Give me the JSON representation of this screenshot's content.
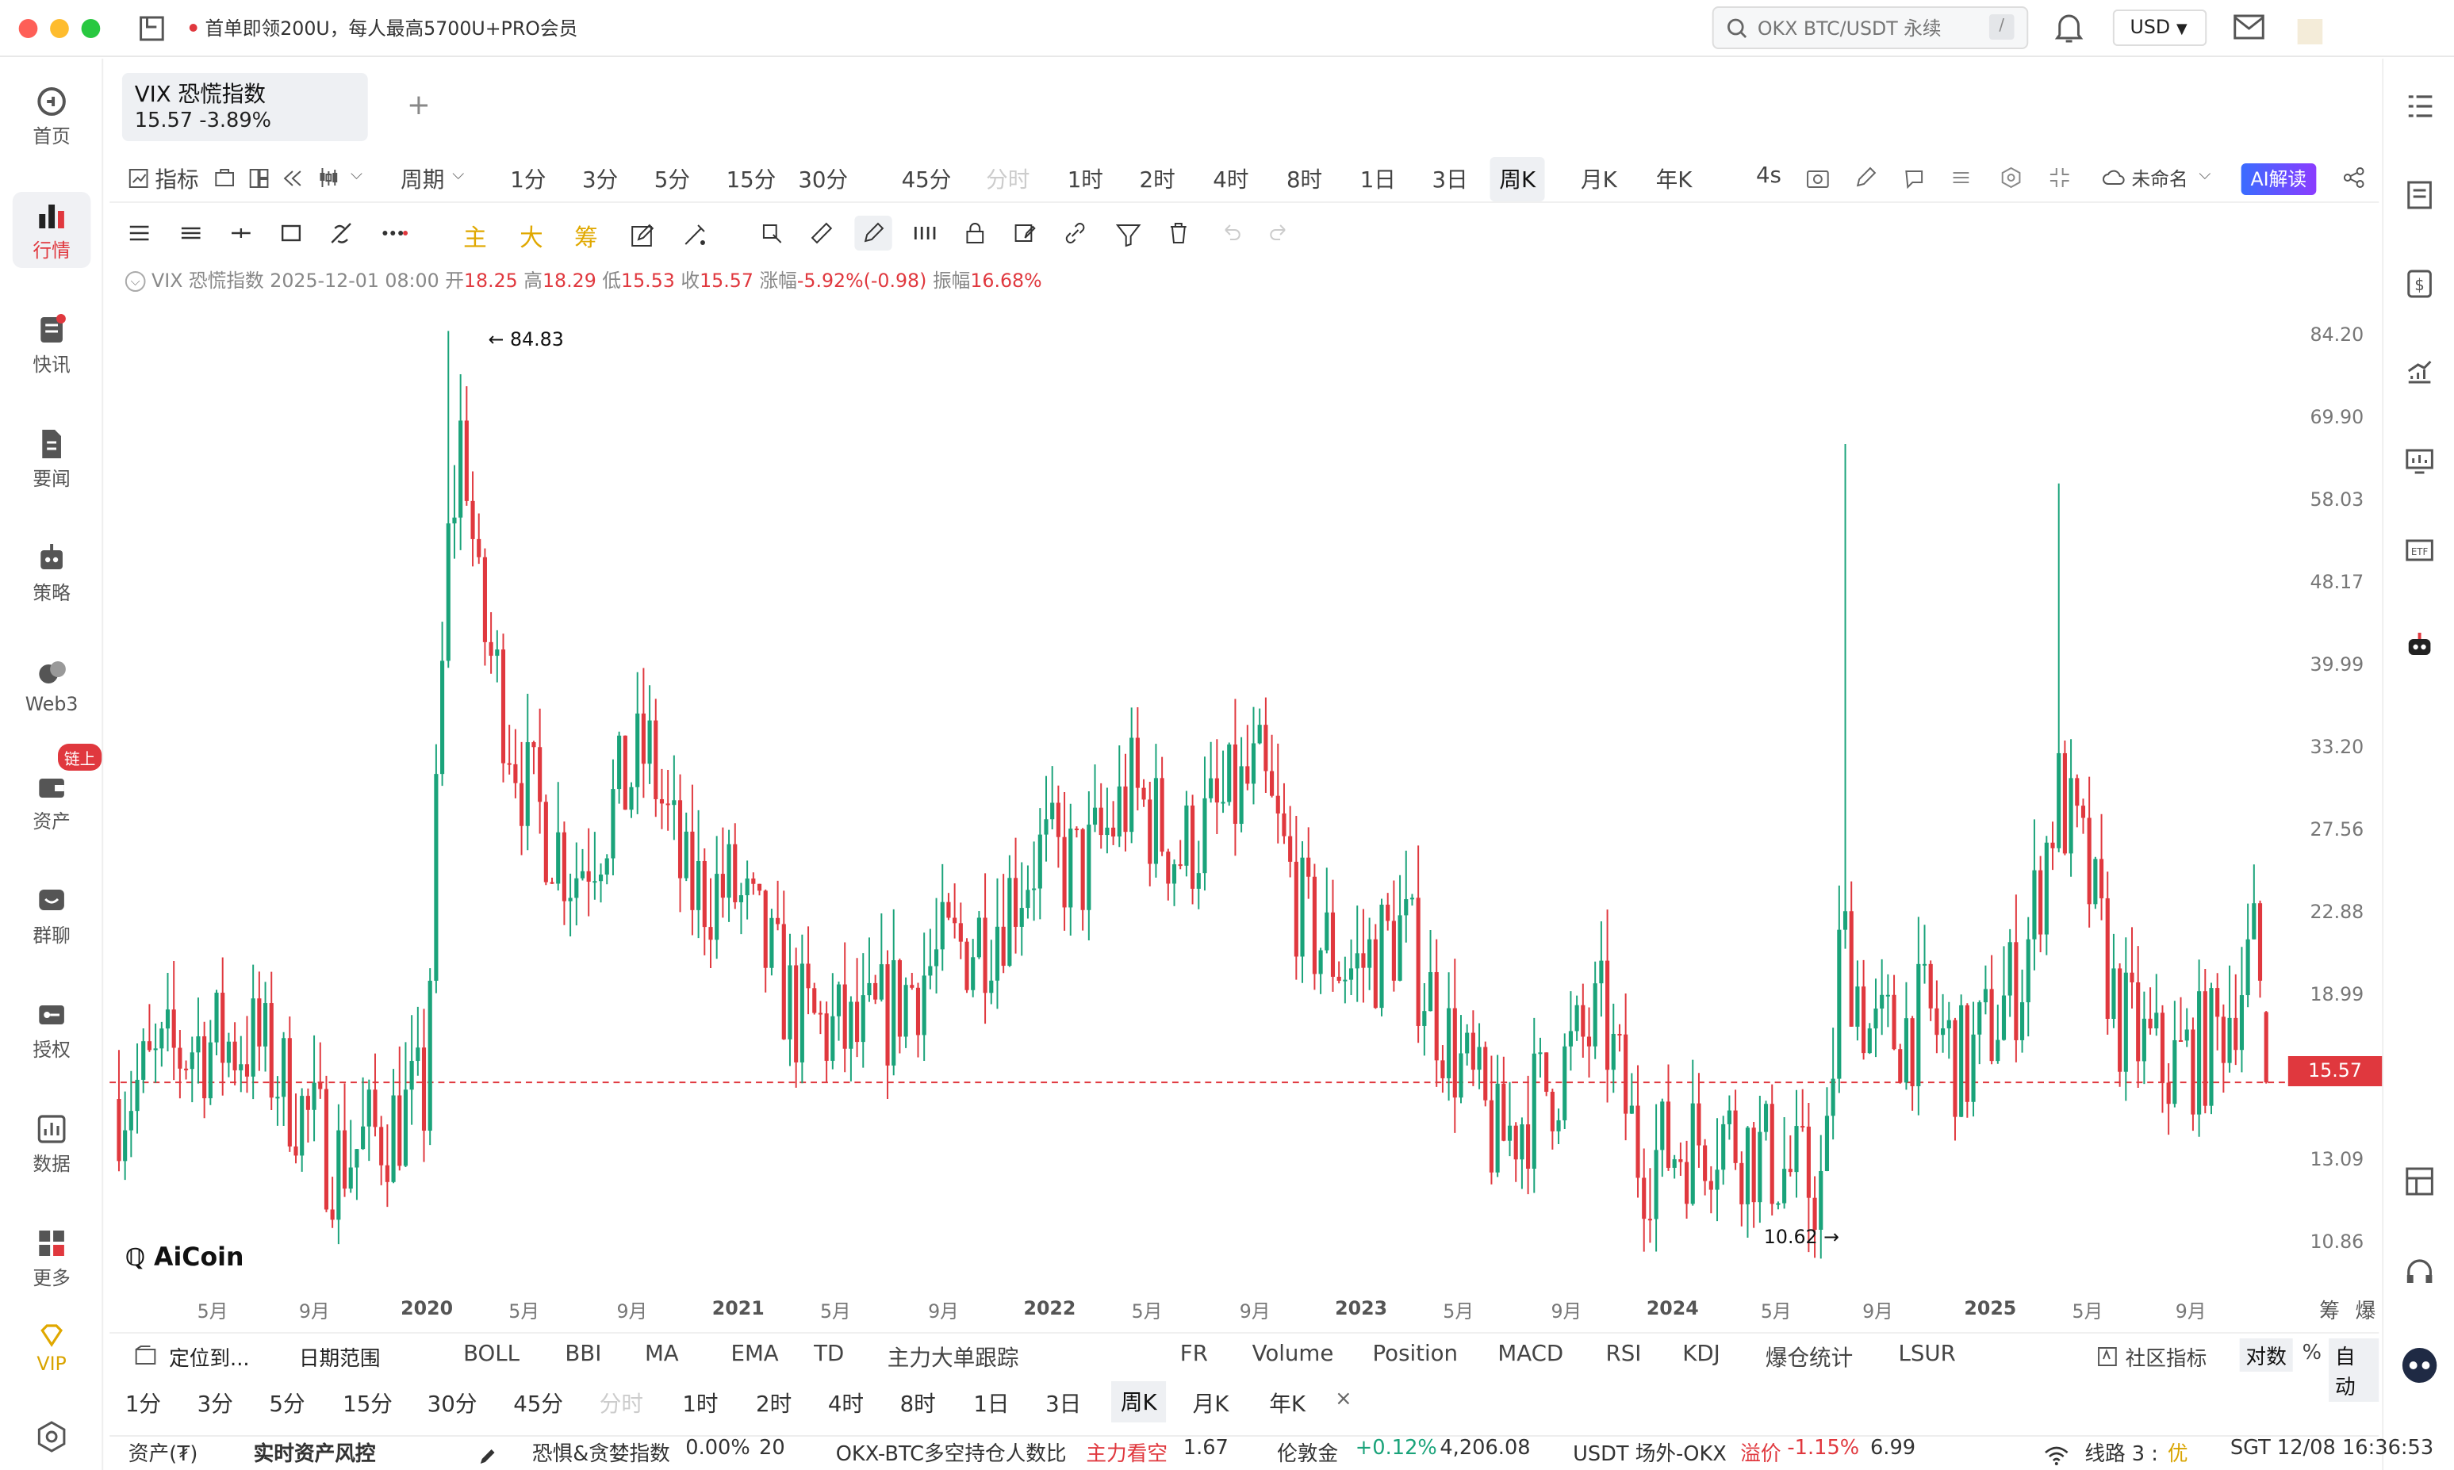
{
  "topbar": {
    "promo": "首单即领200U，每人最高5700U+PRO会员",
    "search_placeholder": "OKX BTC/USDT 永续",
    "search_shortcut": "/",
    "currency": "USD"
  },
  "sidebar": {
    "items": [
      {
        "label": "首页"
      },
      {
        "label": "行情"
      },
      {
        "label": "快讯"
      },
      {
        "label": "要闻"
      },
      {
        "label": "策略"
      },
      {
        "label": "Web3"
      },
      {
        "label": "资产",
        "badge": "链上"
      },
      {
        "label": "群聊"
      },
      {
        "label": "授权"
      },
      {
        "label": "数据"
      },
      {
        "label": "更多"
      },
      {
        "label": "VIP"
      }
    ]
  },
  "tab": {
    "name": "VIX 恐慌指数",
    "price": "15.57",
    "change": "-3.89%",
    "add": "+"
  },
  "toolbar": {
    "indicator": "指标",
    "period": "周期",
    "intervals": [
      "1分",
      "3分",
      "5分",
      "15分",
      "30分",
      "45分",
      "分时",
      "1时",
      "2时",
      "4时",
      "8时",
      "1日",
      "3日",
      "周K",
      "月K",
      "年K"
    ],
    "selected": "周K",
    "refresh": "4s",
    "layout_name": "未命名",
    "ai": "AI解读"
  },
  "draw_toolbar": {
    "labels": [
      "主",
      "大",
      "筹"
    ]
  },
  "ohlc": {
    "name": "VIX 恐慌指数",
    "time": "2025-12-01 08:00",
    "open_label": "开",
    "open": "18.25",
    "high_label": "高",
    "high": "18.29",
    "low_label": "低",
    "low": "15.53",
    "close_label": "收",
    "close": "15.57",
    "chg_label": "涨幅",
    "chg": "-5.92%(-0.98)",
    "amp_label": "振幅",
    "amp": "16.68%"
  },
  "chart_data": {
    "type": "candlestick",
    "y_axis_labels": [
      "84.20",
      "69.90",
      "58.03",
      "48.17",
      "39.99",
      "33.20",
      "27.56",
      "22.88",
      "18.99",
      "13.09",
      "10.86"
    ],
    "y_scale": "log",
    "ylim": [
      9.8,
      92
    ],
    "x_labels": [
      "5月",
      "9月",
      "2020",
      "5月",
      "9月",
      "2021",
      "5月",
      "9月",
      "2022",
      "5月",
      "9月",
      "2023",
      "5月",
      "9月",
      "2024",
      "5月",
      "9月",
      "2025",
      "5月",
      "9月"
    ],
    "current_price": "15.57",
    "high_marker": "84.83",
    "low_marker": "10.62",
    "right_labels": [
      "筹",
      "爆"
    ],
    "colors": {
      "up": "#1aa37a",
      "down": "#e0383e"
    },
    "key_candles": [
      {
        "date": "2020-03-16",
        "high": 84.83
      },
      {
        "date": "2024-08-05",
        "high": 65.73
      },
      {
        "date": "2025-04-07",
        "high": 60.13
      },
      {
        "date": "2024-06-24",
        "low": 10.62
      },
      {
        "date": "2025-12-01",
        "open": 18.25,
        "high": 18.29,
        "low": 15.53,
        "close": 15.57
      }
    ]
  },
  "indicators": {
    "locate": "定位到...",
    "range": "日期范围",
    "main": [
      "BOLL",
      "BBI",
      "MA",
      "EMA",
      "TD",
      "主力大单跟踪"
    ],
    "sub": [
      "FR",
      "Volume",
      "Position",
      "MACD",
      "RSI",
      "KDJ",
      "爆仓统计",
      "LSUR"
    ],
    "community": "社区指标",
    "log": "对数",
    "pct": "%",
    "auto": "自动"
  },
  "periods2": {
    "items": [
      "1分",
      "3分",
      "5分",
      "15分",
      "30分",
      "45分",
      "分时",
      "1时",
      "2时",
      "4时",
      "8时",
      "1日",
      "3日",
      "周K",
      "月K",
      "年K"
    ],
    "selected": "周K",
    "close": "×"
  },
  "status": {
    "assets": "资产(₮)",
    "risk": "实时资产风控",
    "fear": "恐惧&贪婪指数",
    "fear_pct": "0.00%",
    "fear_val": "20",
    "ratio": "OKX-BTC多空持仓人数比",
    "ratio_tag": "主力看空",
    "ratio_val": "1.67",
    "gold": "伦敦金",
    "gold_chg": "+0.12%",
    "gold_val": "4,206.08",
    "usdt": "USDT 场外-OKX",
    "usdt_tag": "溢价",
    "usdt_chg": "-1.15%",
    "usdt_val": "6.99",
    "line": "线路 3 :",
    "line_q": "优",
    "time": "SGT 12/08 16:36:53"
  },
  "logo": "AiCoin"
}
